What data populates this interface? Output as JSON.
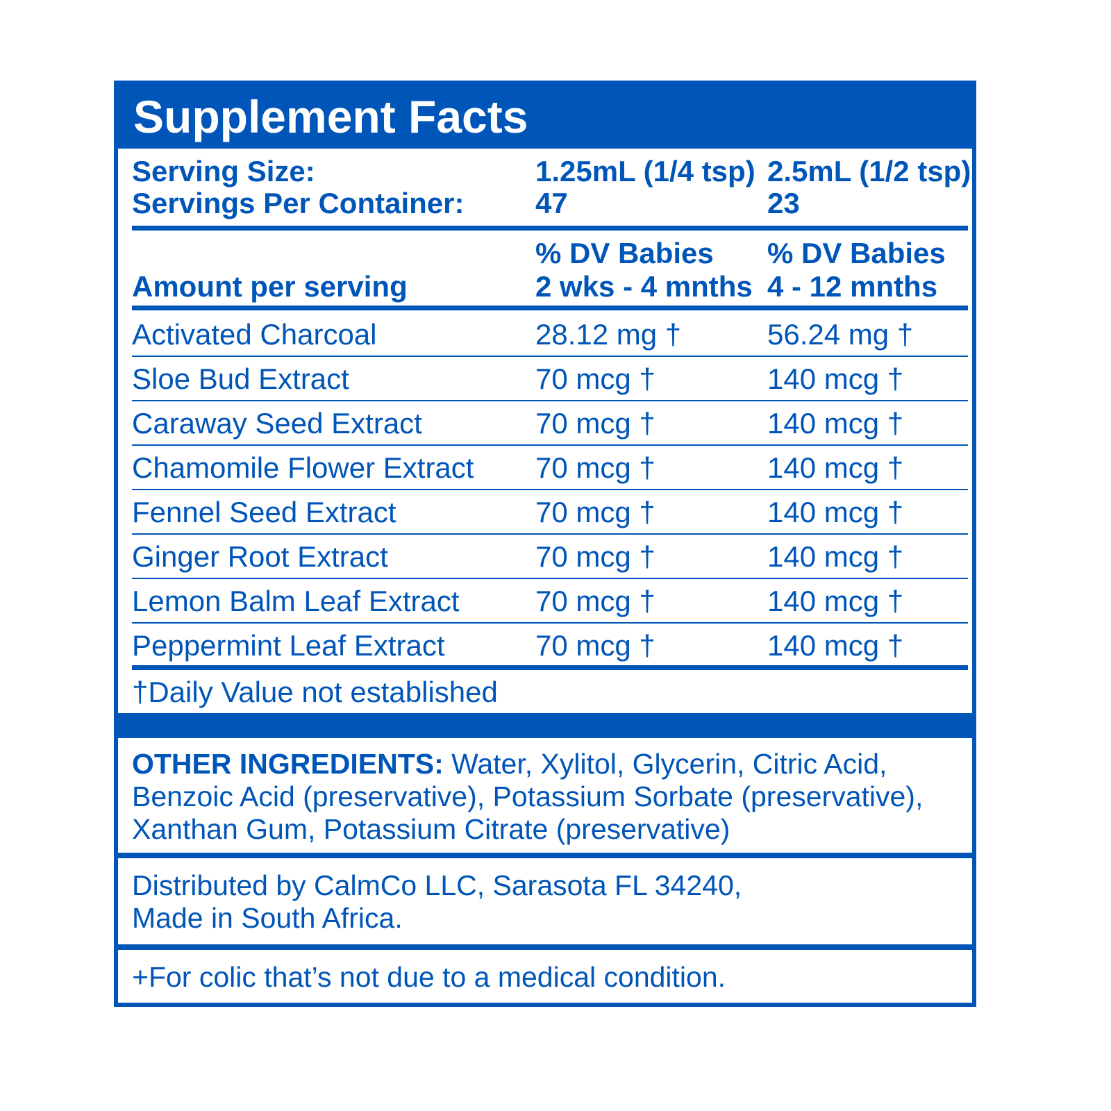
{
  "title": "Supplement Facts",
  "serving": {
    "size_label": "Serving Size:",
    "per_container_label": "Servings Per Container:",
    "columns": [
      {
        "size": "1.25mL (1/4 tsp)",
        "servings": "47"
      },
      {
        "size": "2.5mL (1/2 tsp)",
        "servings": "23"
      }
    ]
  },
  "header": {
    "amount_label": "Amount per serving",
    "col1_line1": "% DV Babies",
    "col1_line2": "2 wks - 4 mnths",
    "col2_line1": "% DV Babies",
    "col2_line2": "4 - 12 mnths"
  },
  "ingredients": [
    {
      "name": "Activated Charcoal",
      "col1": "28.12 mg †",
      "col2": "56.24 mg †"
    },
    {
      "name": "Sloe Bud Extract",
      "col1": "70 mcg †",
      "col2": "140 mcg †"
    },
    {
      "name": "Caraway Seed Extract",
      "col1": "70 mcg †",
      "col2": "140 mcg †"
    },
    {
      "name": "Chamomile Flower Extract",
      "col1": "70 mcg †",
      "col2": "140 mcg †"
    },
    {
      "name": "Fennel Seed Extract",
      "col1": "70 mcg †",
      "col2": "140 mcg †"
    },
    {
      "name": "Ginger Root Extract",
      "col1": "70 mcg †",
      "col2": "140 mcg †"
    },
    {
      "name": "Lemon Balm Leaf Extract",
      "col1": "70 mcg †",
      "col2": "140 mcg †"
    },
    {
      "name": "Peppermint Leaf Extract",
      "col1": "70 mcg †",
      "col2": "140 mcg †"
    }
  ],
  "footnote": "†Daily Value not established",
  "other_ingredients": {
    "label": "OTHER INGREDIENTS:",
    "line1": " Water, Xylitol, Glycerin, Citric Acid,",
    "line2": "Benzoic Acid (preservative), Potassium Sorbate (preservative),",
    "line3": "Xanthan Gum, Potassium Citrate (preservative)"
  },
  "distributor": {
    "line1": "Distributed by CalmCo LLC, Sarasota FL 34240,",
    "line2": "Made in South Africa."
  },
  "disclaimer": "+For colic that’s not due to a medical condition.",
  "colors": {
    "brand_blue": "#0055b8",
    "background": "#ffffff"
  }
}
